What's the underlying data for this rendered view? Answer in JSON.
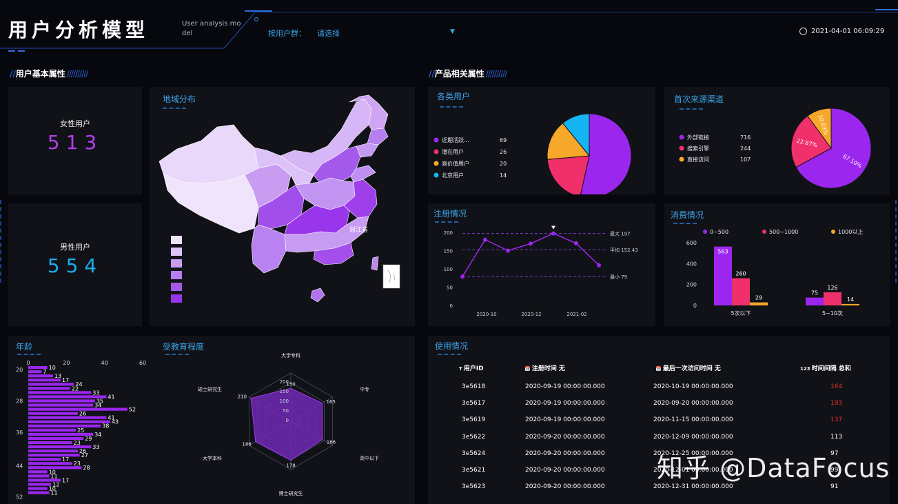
{
  "header": {
    "title": "用户分析模型",
    "subtitle_line1": "User analysis mo",
    "subtitle_line2": "del",
    "filter_label": "按用户群：",
    "filter_value": "请选择",
    "datetime": "2021-04-01 06:09:29"
  },
  "sections": {
    "user": "用户基本属性",
    "product": "产品相关属性",
    "slashes": "//////////"
  },
  "female": {
    "label": "女性用户",
    "value": "513"
  },
  "male": {
    "label": "男性用户",
    "value": "554"
  },
  "map": {
    "title": "地域分布",
    "tooltip": "浙江省"
  },
  "colors": {
    "purple": "#9b27ef",
    "pink": "#f0306a",
    "orange": "#f7a82a",
    "blue": "#15b5f5",
    "title": "#3aa3e8"
  },
  "user_types": {
    "title": "各类用户"
  },
  "channel": {
    "title": "首次来源渠道"
  },
  "register": {
    "title": "注册情况",
    "max_label": "最大 197",
    "avg_label": "平均 152.43",
    "min_label": "最小 79"
  },
  "consume": {
    "title": "消费情况"
  },
  "age": {
    "title": "年龄"
  },
  "education": {
    "title": "受教育程度"
  },
  "usage": {
    "title": "使用情况",
    "headers": [
      "用户ID",
      "注册时间 无",
      "最后一次访问时间 无",
      "时间间隔 总和"
    ],
    "header_icons": [
      "T",
      "📅",
      "📅",
      "123"
    ],
    "rows": [
      [
        "3e5618",
        "2020-09-19 00:00:00.000",
        "2020-10-19 00:00:00.000",
        "164"
      ],
      [
        "3e5617",
        "2020-09-19 00:00:00.000",
        "2020-09-20 00:00:00.000",
        "193"
      ],
      [
        "3e5619",
        "2020-09-19 00:00:00.000",
        "2020-11-15 00:00:00.000",
        "137"
      ],
      [
        "3e5622",
        "2020-09-20 00:00:00.000",
        "2020-12-09 00:00:00.000",
        "113"
      ],
      [
        "3e5624",
        "2020-09-20 00:00:00.000",
        "2020-12-25 00:00:00.000",
        "97"
      ],
      [
        "3e5621",
        "2020-09-20 00:00:00.000",
        "2020-12-01 00:00:00.000",
        "99"
      ],
      [
        "3e5623",
        "2020-09-20 00:00:00.000",
        "2020-12-31 00:00:00.000",
        "91"
      ]
    ],
    "highlight_color": "#e8302a"
  },
  "watermark": "知乎 @DataFocus",
  "chart_data": [
    {
      "id": "user_types",
      "type": "pie",
      "labels": [
        "近期活跃...",
        "潜在用户",
        "高价值用户",
        "北京用户"
      ],
      "values": [
        69,
        26,
        20,
        14
      ],
      "colors": [
        "#9b27ef",
        "#f0306a",
        "#f7a82a",
        "#15b5f5"
      ]
    },
    {
      "id": "channel",
      "type": "pie",
      "labels": [
        "外部链接",
        "搜索引擎",
        "直接访问"
      ],
      "values": [
        716,
        244,
        107
      ],
      "percent_labels": [
        "67.10%",
        "22.87%",
        "10.03%"
      ],
      "colors": [
        "#9b27ef",
        "#f0306a",
        "#f7a82a"
      ]
    },
    {
      "id": "register",
      "type": "line",
      "x_ticks": [
        "2020-10",
        "2020-12",
        "2021-02"
      ],
      "values": [
        79,
        180,
        150,
        169,
        197,
        170,
        110
      ],
      "ylim": [
        0,
        200
      ],
      "yticks": [
        0,
        50,
        100,
        150,
        200
      ],
      "max": 197,
      "avg": 152.43,
      "min": 79
    },
    {
      "id": "consume",
      "type": "bar",
      "categories": [
        "5次以下",
        "5~10次"
      ],
      "series": [
        {
          "name": "0~500",
          "values": [
            563,
            75
          ],
          "color": "#9b27ef"
        },
        {
          "name": "500~1000",
          "values": [
            260,
            126
          ],
          "color": "#f0306a"
        },
        {
          "name": "1000以上",
          "values": [
            29,
            14
          ],
          "color": "#f7a82a"
        }
      ],
      "ylim": [
        0,
        600
      ],
      "yticks": [
        0,
        200,
        400,
        600
      ]
    },
    {
      "id": "age",
      "type": "bar",
      "orientation": "horizontal",
      "values": [
        10,
        7,
        13,
        17,
        24,
        22,
        33,
        41,
        35,
        34,
        52,
        26,
        41,
        43,
        38,
        25,
        34,
        29,
        23,
        33,
        26,
        27,
        17,
        23,
        28,
        10,
        11,
        17,
        12,
        10,
        11
      ],
      "y_ticks": [
        "20",
        "28",
        "36",
        "44",
        "52"
      ],
      "x_ticks": [
        "0",
        "20",
        "40",
        "60"
      ],
      "xlim": [
        0,
        60
      ]
    },
    {
      "id": "education",
      "type": "radar",
      "axes": [
        "大学专科",
        "中专",
        "高中以下",
        "博士研究生",
        "大学本科",
        "硕士研究生"
      ],
      "values": [
        150,
        165,
        166,
        178,
        186,
        210
      ],
      "rings": [
        "200",
        "150",
        "100",
        "50",
        "0"
      ],
      "max": 220
    }
  ]
}
